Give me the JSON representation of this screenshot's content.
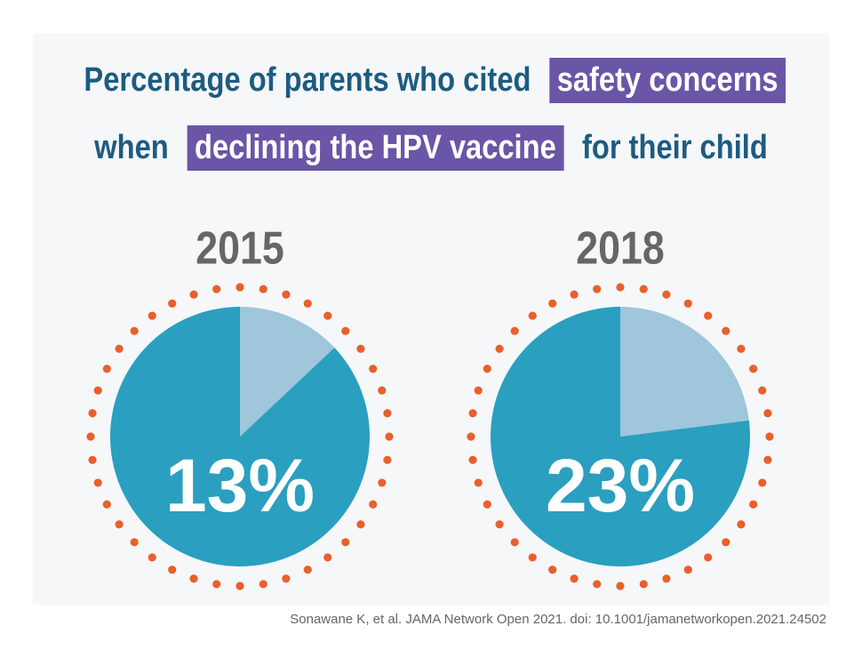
{
  "title": {
    "lines": [
      [
        {
          "text": "Percentage of parents who cited",
          "highlight": false
        },
        {
          "text": "safety concerns",
          "highlight": true
        }
      ],
      [
        {
          "text": "when",
          "highlight": false
        },
        {
          "text": "declining the HPV vaccine",
          "highlight": true
        },
        {
          "text": "for their child",
          "highlight": false
        }
      ]
    ]
  },
  "chart_data": [
    {
      "type": "pie",
      "title": "2015",
      "values": [
        13,
        87
      ],
      "value_labels": [
        "13%",
        null
      ],
      "colors": [
        "#9fc6da",
        "#2a9fc0"
      ],
      "ring_color": "#e8602c"
    },
    {
      "type": "pie",
      "title": "2018",
      "values": [
        23,
        77
      ],
      "value_labels": [
        "23%",
        null
      ],
      "colors": [
        "#9fc6da",
        "#2a9fc0"
      ],
      "ring_color": "#e8602c"
    }
  ],
  "source": "Sonawane K, et al. JAMA Network Open 2021. doi: 10.1001/jamanetworkopen.2021.24502"
}
